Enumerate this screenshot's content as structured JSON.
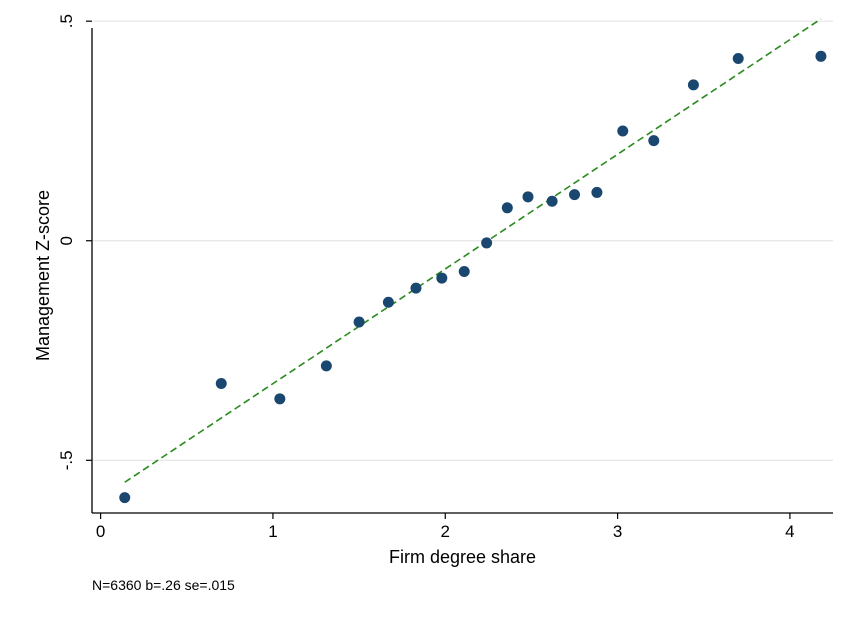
{
  "chart_data": {
    "type": "scatter",
    "title": "",
    "xlabel": "Firm degree share",
    "ylabel": "Management Z-score",
    "xlim": [
      -0.05,
      4.25
    ],
    "ylim": [
      -0.62,
      0.53
    ],
    "xticks": [
      0,
      1,
      2,
      3,
      4
    ],
    "xtick_labels": [
      "0",
      "1",
      "2",
      "3",
      "4"
    ],
    "yticks": [
      -0.5,
      0,
      0.5
    ],
    "ytick_labels": [
      "-.5",
      "0",
      ".5"
    ],
    "grid": "horizontal",
    "legend": "none",
    "note": "N=6360 b=.26 se=.015",
    "points": {
      "x": [
        0.14,
        0.7,
        1.04,
        1.31,
        1.5,
        1.67,
        1.83,
        1.98,
        2.11,
        2.24,
        2.36,
        2.48,
        2.62,
        2.75,
        2.88,
        3.03,
        3.21,
        3.44,
        3.7,
        4.18
      ],
      "y": [
        -0.585,
        -0.325,
        -0.36,
        -0.285,
        -0.185,
        -0.14,
        -0.108,
        -0.085,
        -0.07,
        -0.005,
        0.075,
        0.1,
        0.09,
        0.105,
        0.11,
        0.25,
        0.228,
        0.355,
        0.415,
        0.42
      ]
    },
    "fit_line": {
      "style": "dashed",
      "x": [
        0.14,
        4.18
      ],
      "y": [
        -0.55,
        0.505
      ]
    },
    "colors": {
      "points": "#1a476f",
      "fit_line": "#2a8a1e",
      "grid": "#e5e5e5",
      "axis": "#000000"
    }
  }
}
